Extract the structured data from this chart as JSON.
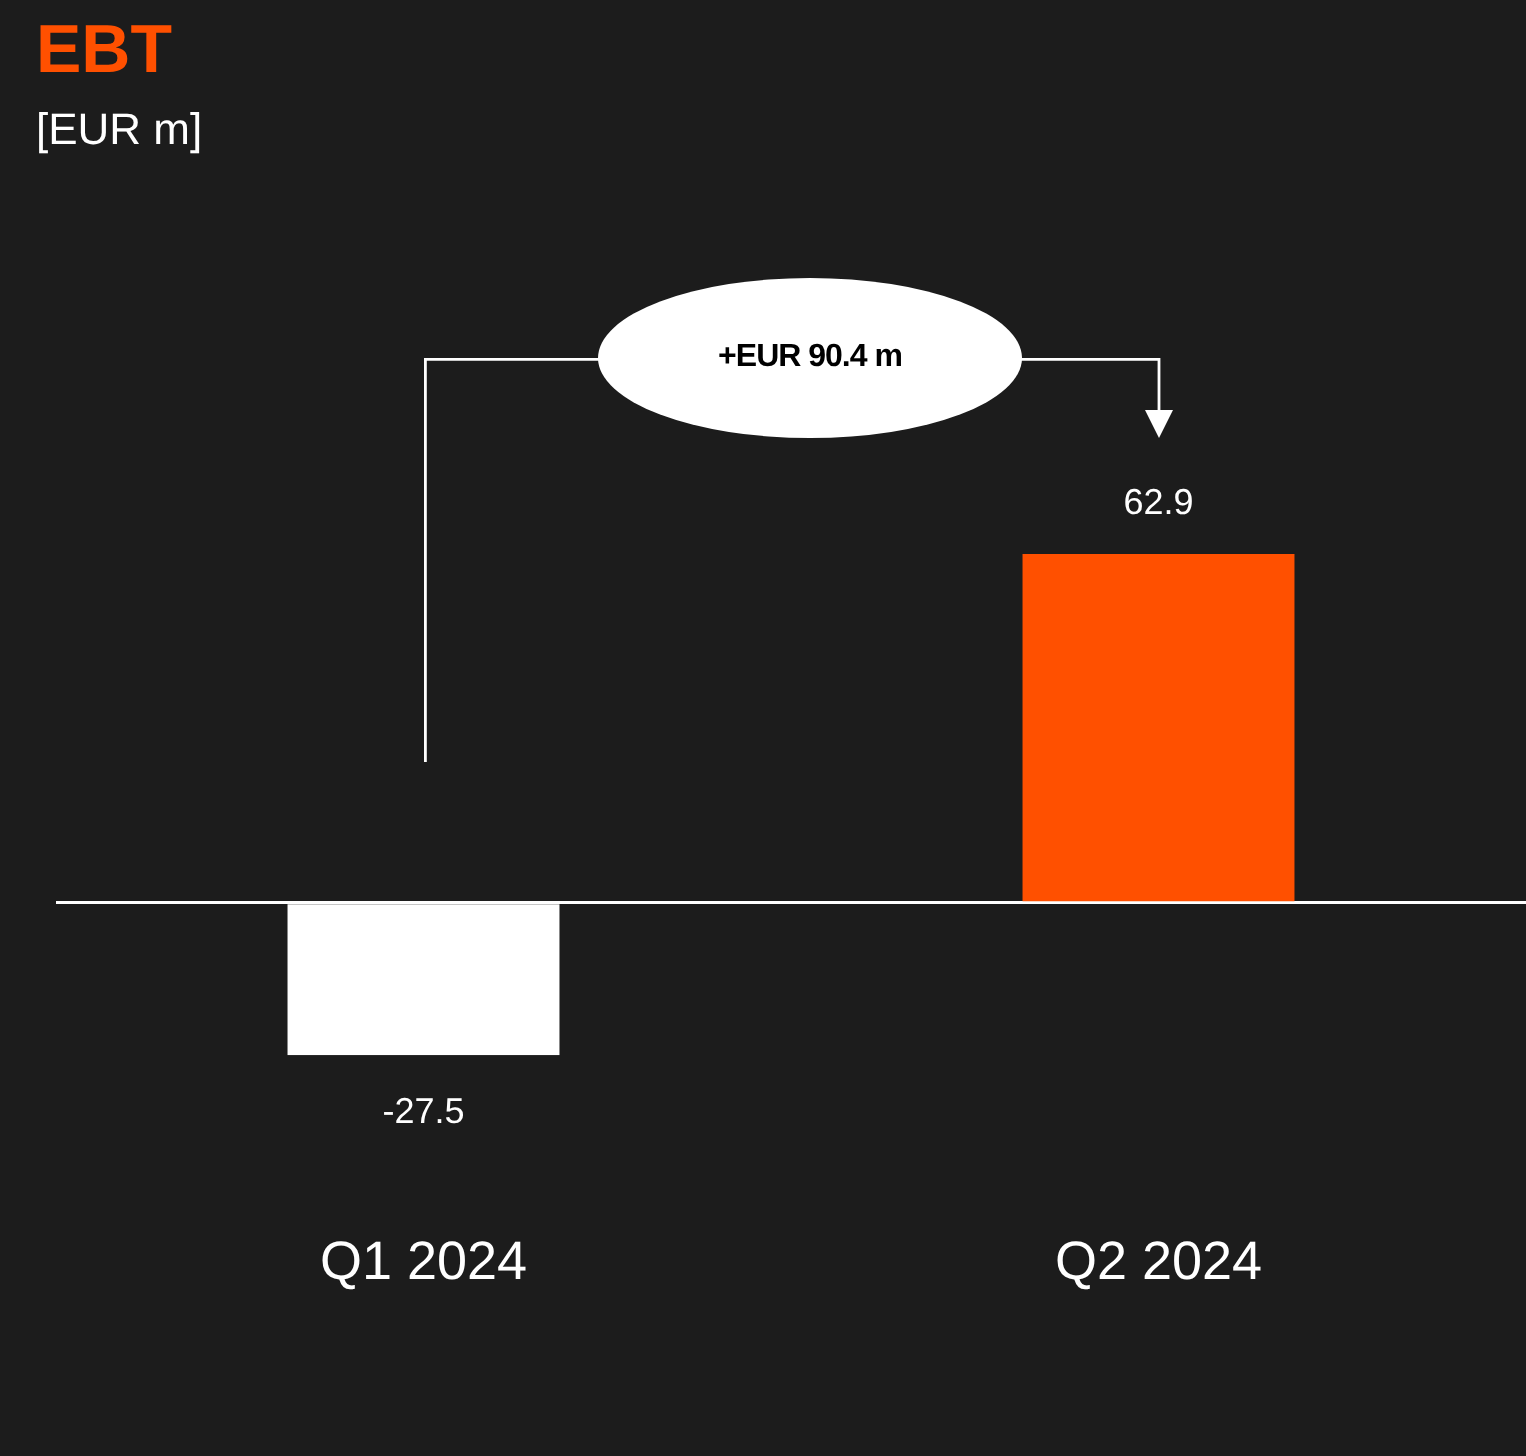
{
  "chart_data": {
    "type": "bar",
    "title": "EBT",
    "subtitle": "[EUR m]",
    "categories": [
      "Q1 2024",
      "Q2 2024"
    ],
    "values": [
      -27.5,
      62.9
    ],
    "colors": [
      "#ffffff",
      "#ff5000"
    ],
    "data_labels": true,
    "annotations": [
      "+EUR 90.4 m"
    ],
    "legend": false
  }
}
